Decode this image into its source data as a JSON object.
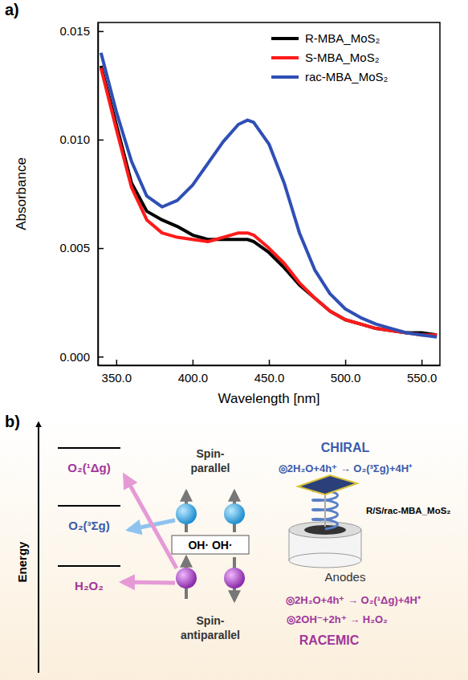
{
  "chart_data": {
    "type": "line",
    "panel_label": "a)",
    "x_label": "Wavelength [nm]",
    "y_label": "Absorbance",
    "x": [
      340,
      350,
      360,
      370,
      380,
      390,
      400,
      410,
      420,
      430,
      436,
      440,
      450,
      460,
      470,
      480,
      490,
      500,
      510,
      520,
      530,
      540,
      550,
      560
    ],
    "series": [
      {
        "name": "R-MBA_MoS₂",
        "color": "#000000",
        "values": [
          0.0134,
          0.0107,
          0.008,
          0.0067,
          0.0063,
          0.006,
          0.0056,
          0.0054,
          0.0054,
          0.0054,
          0.0054,
          0.0053,
          0.0048,
          0.0041,
          0.0033,
          0.0027,
          0.0021,
          0.0017,
          0.0015,
          0.0013,
          0.0012,
          0.0011,
          0.0011,
          0.001
        ]
      },
      {
        "name": "S-MBA_MoS₂",
        "color": "#ff1a1a",
        "values": [
          0.0133,
          0.0105,
          0.0078,
          0.0063,
          0.0057,
          0.0055,
          0.0054,
          0.0053,
          0.0055,
          0.0057,
          0.0057,
          0.0056,
          0.005,
          0.0043,
          0.0034,
          0.0027,
          0.0021,
          0.0017,
          0.0015,
          0.0013,
          0.0012,
          0.0011,
          0.001,
          0.001
        ]
      },
      {
        "name": "rac-MBA_MoS₂",
        "color": "#2f4fb5",
        "values": [
          0.014,
          0.0113,
          0.009,
          0.0074,
          0.0069,
          0.0072,
          0.0079,
          0.0089,
          0.0099,
          0.0107,
          0.0109,
          0.0108,
          0.0098,
          0.008,
          0.0057,
          0.004,
          0.0029,
          0.0022,
          0.0018,
          0.0015,
          0.0013,
          0.0011,
          0.001,
          0.0009
        ]
      }
    ],
    "xlim": [
      338,
      562
    ],
    "ylim": [
      -0.0004,
      0.0154
    ],
    "xticks": [
      {
        "value": 350,
        "label": "350.0"
      },
      {
        "value": 400,
        "label": "400.0"
      },
      {
        "value": 450,
        "label": "450.0"
      },
      {
        "value": 500,
        "label": "500.0"
      },
      {
        "value": 550,
        "label": "550.0"
      }
    ],
    "yticks": [
      {
        "value": 0,
        "label": "0.000"
      },
      {
        "value": 0.005,
        "label": "0.005"
      },
      {
        "value": 0.01,
        "label": "0.010"
      },
      {
        "value": 0.015,
        "label": "0.015"
      }
    ],
    "legend": "top-right",
    "grid": false
  },
  "diagram": {
    "panel_label": "b)",
    "energy_label": "Energy",
    "levels": [
      "O₂(¹Δg)",
      "O₂(³Σg)",
      "H₂O₂"
    ],
    "spin_parallel": "Spin-parallel",
    "spin_antiparallel": "Spin-antiparallel",
    "radicals": "OH· OH·",
    "chiral": {
      "title": "CHIRAL",
      "equations": [
        "◎2H₂O+4h⁺ → O₂(³Σg)+4H⁺"
      ]
    },
    "electrode": {
      "label": "R/S/rac-MBA_MoS₂",
      "caption": "Anodes"
    },
    "racemic": {
      "title": "RACEMIC",
      "equations": [
        "◎2H₂O+4h⁺ → O₂(¹Δg)+4H⁺",
        "◎2OH⁻+2h⁺ → H₂O₂"
      ]
    }
  }
}
